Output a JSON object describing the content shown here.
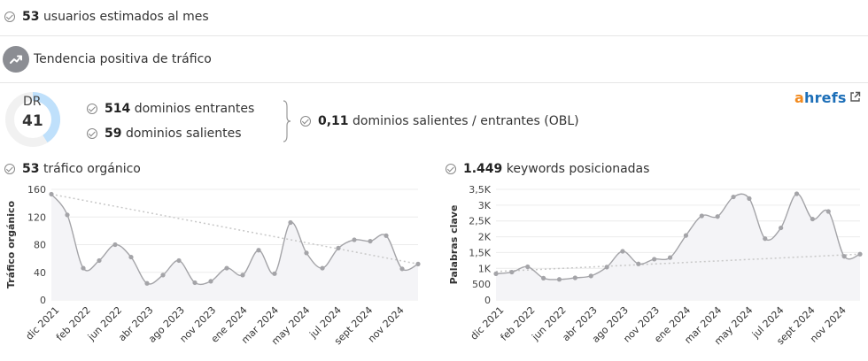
{
  "stats": {
    "monthly_users_value": "53",
    "monthly_users_label": "usuarios estimados al mes",
    "trend_label": "Tendencia positiva de tráfico"
  },
  "dr": {
    "label": "DR",
    "value": "41",
    "percent": 41
  },
  "links": {
    "incoming_value": "514",
    "incoming_label": "dominios entrantes",
    "outgoing_value": "59",
    "outgoing_label": "dominios salientes",
    "obl_value": "0,11",
    "obl_label": "dominios salientes / entrantes (OBL)"
  },
  "brand": {
    "logo_a": "a",
    "logo_rest": "hrefs",
    "external_link_icon": "external-link-icon"
  },
  "colors": {
    "dr_ring": "#bfe0fb",
    "trend_bg": "#8b8d93",
    "brand_orange": "#f28a1e",
    "brand_blue": "#1d6fb8"
  },
  "chart_data": [
    {
      "type": "line",
      "header_value": "53",
      "header_label": "tráfico orgánico",
      "ylabel": "Tráfico orgánico",
      "ylim": [
        0,
        160
      ],
      "yticks": [
        "0",
        "40",
        "80",
        "120",
        "160"
      ],
      "xticks": [
        "dic 2021",
        "feb 2022",
        "jun 2022",
        "abr 2023",
        "ago 2023",
        "nov 2023",
        "ene 2024",
        "mar 2024",
        "may 2024",
        "jul 2024",
        "sept 2024",
        "nov 2024"
      ],
      "values": [
        153,
        123,
        46,
        57,
        80,
        62,
        24,
        36,
        57,
        25,
        27,
        46,
        36,
        72,
        38,
        112,
        68,
        46,
        75,
        87,
        85,
        93,
        45,
        52
      ],
      "trend": [
        153,
        52
      ],
      "grid": true
    },
    {
      "type": "line",
      "header_value": "1.449",
      "header_label": "keywords posicionadas",
      "ylabel": "Palabras clave",
      "ylim": [
        0,
        3500
      ],
      "yticks": [
        "0",
        "500",
        "1K",
        "1,5K",
        "2K",
        "2,5K",
        "3K",
        "3,5K"
      ],
      "xticks": [
        "dic 2021",
        "feb 2022",
        "jun 2022",
        "abr 2023",
        "ago 2023",
        "nov 2023",
        "ene 2024",
        "mar 2024",
        "may 2024",
        "jul 2024",
        "sept 2024",
        "nov 2024"
      ],
      "values": [
        830,
        880,
        1050,
        690,
        650,
        700,
        760,
        1040,
        1540,
        1140,
        1290,
        1340,
        2040,
        2660,
        2640,
        3260,
        3210,
        1940,
        2280,
        3360,
        2560,
        2800,
        1380,
        1449
      ],
      "trend": [
        900,
        1449
      ],
      "grid": true
    }
  ]
}
